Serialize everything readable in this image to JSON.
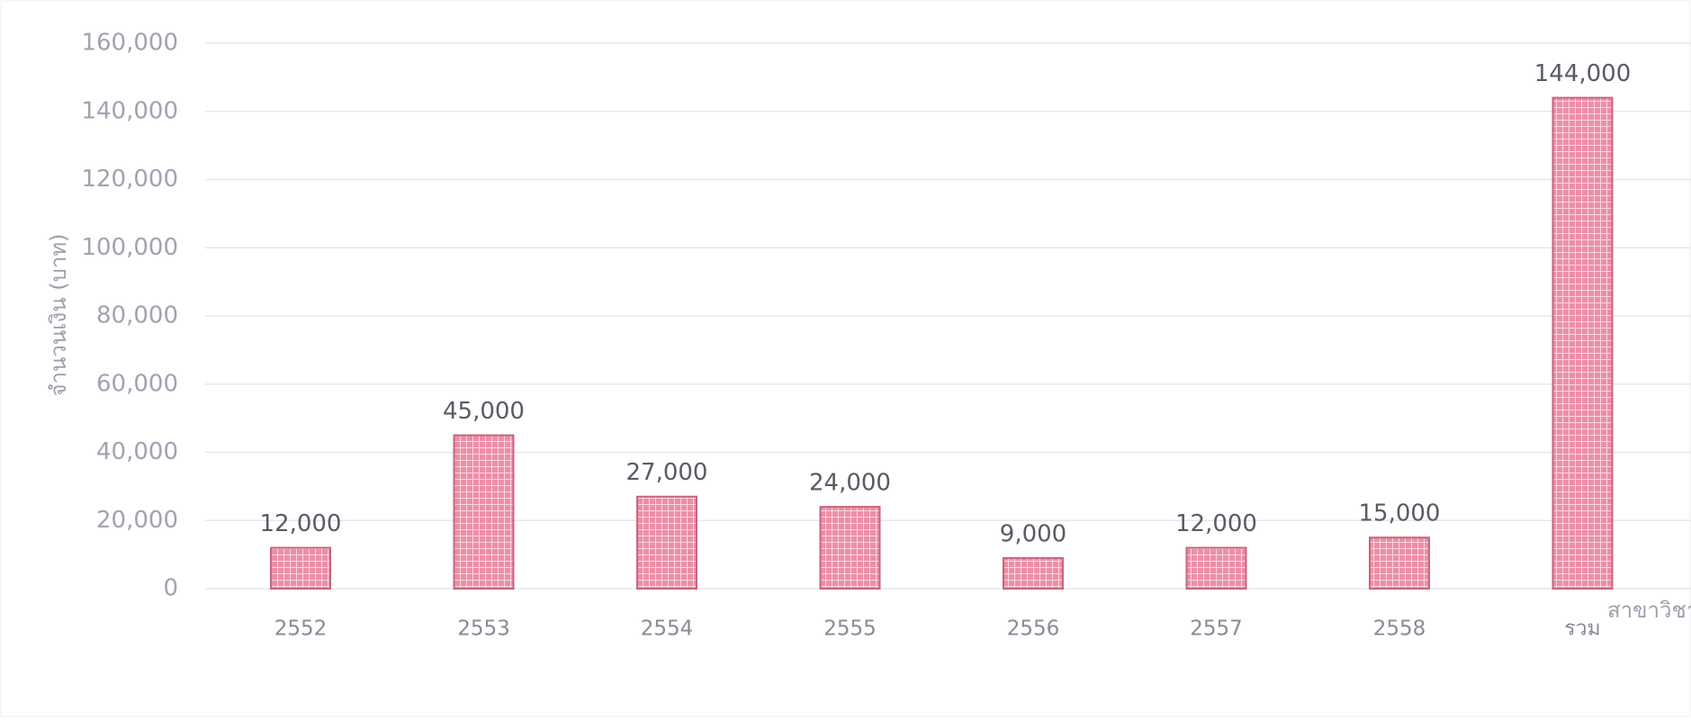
{
  "chart_data": {
    "type": "bar",
    "y_label": "จำนวนเงิน (บาท)",
    "x_label": "สาขาวิชา",
    "categories": [
      "2552",
      "2553",
      "2554",
      "2555",
      "2556",
      "2557",
      "2558",
      "รวม"
    ],
    "values": [
      12000,
      45000,
      27000,
      24000,
      9000,
      12000,
      15000,
      144000
    ],
    "value_labels": [
      "12,000",
      "45,000",
      "27,000",
      "24,000",
      "9,000",
      "12,000",
      "15,000",
      "144,000"
    ],
    "color": "#ec8ea7",
    "ylim": [
      0,
      160000
    ],
    "yticks": [
      0,
      {
        "value": 20000,
        "label": "20,000"
      },
      {
        "value": 40000,
        "label": "40,000"
      },
      {
        "value": 60000,
        "label": "60,000"
      },
      {
        "value": 80000,
        "label": "80,000"
      },
      {
        "value": 100000,
        "label": "100,000"
      },
      {
        "value": 120000,
        "label": "120,000"
      },
      {
        "value": 140000,
        "label": "140,000"
      },
      {
        "value": 160000,
        "label": "160,000"
      }
    ],
    "grid": true
  }
}
